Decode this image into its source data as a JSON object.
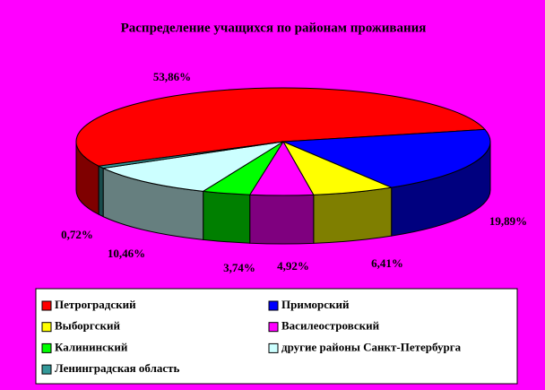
{
  "chart_data": {
    "type": "pie3d",
    "title": "Распределение учащихся по районам проживания",
    "categories": [
      "Петроградский",
      "Приморский",
      "Выборгский",
      "Василеостровский",
      "Калининский",
      "другие районы Санкт-Петербурга",
      "Ленинградская область"
    ],
    "values": [
      53.86,
      19.89,
      6.41,
      4.92,
      3.74,
      10.46,
      0.72
    ],
    "value_labels": [
      "53,86%",
      "19,89%",
      "6,41%",
      "4,92%",
      "3,74%",
      "10,46%",
      "0,72%"
    ],
    "colors": [
      "#ff0000",
      "#0000ff",
      "#ffff00",
      "#ff00ff",
      "#00ff00",
      "#ccffff",
      "#339999"
    ]
  }
}
